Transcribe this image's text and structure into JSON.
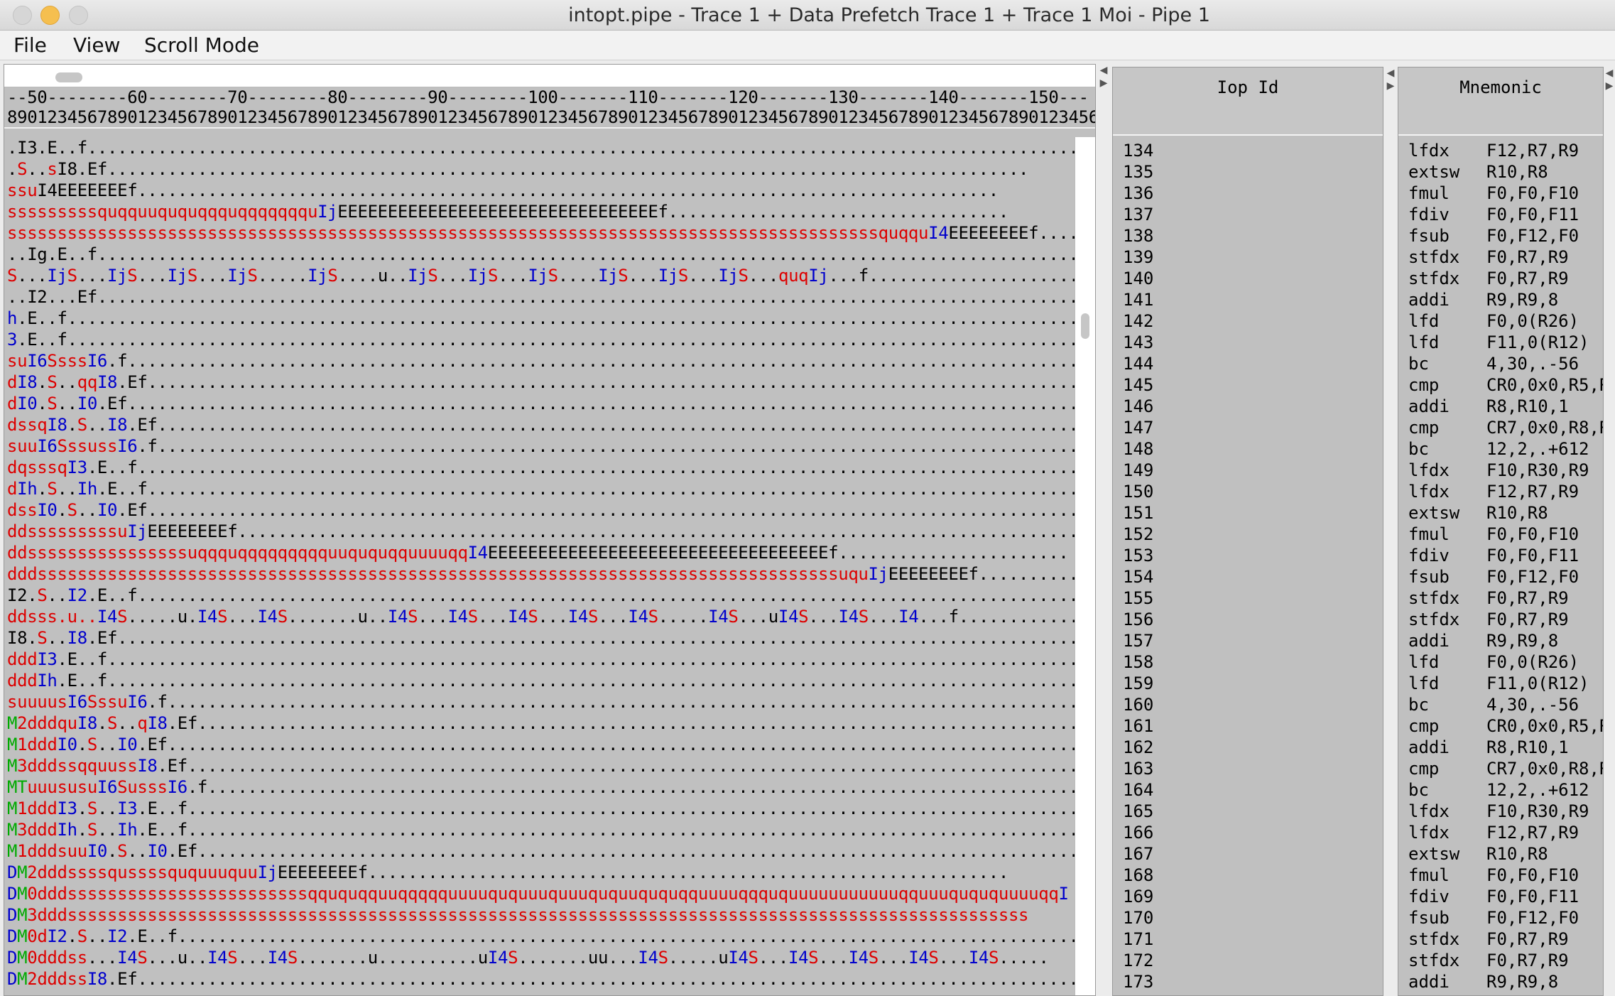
{
  "window": {
    "title": "intopt.pipe - Trace 1 + Data Prefetch Trace 1 + Trace 1 Moi - Pipe 1"
  },
  "menu": {
    "file": "File",
    "view": "View",
    "scroll_mode": "Scroll Mode"
  },
  "ruler": {
    "line1": "--50--------60--------70--------80--------90--------100-------110-------120-------130-------140-------150---",
    "line2": "8901234567890123456789012345678901234567890123456789012345678901234567890123456789012345678901234567890123456"
  },
  "pipe_rows": [
    [
      [
        ".I3.E..f.......................................................................................................",
        ""
      ]
    ],
    [
      [
        ".",
        ""
      ],
      [
        "S",
        "r"
      ],
      [
        "..",
        ""
      ],
      [
        "s",
        "r"
      ],
      [
        "I8.Ef............................................................................................",
        ""
      ]
    ],
    [
      [
        "ssu",
        "r"
      ],
      [
        "I4EEEEEEEf......................................................................................",
        ""
      ]
    ],
    [
      [
        "sssssssssquqquuququqqquqqqqqqqu",
        "r"
      ],
      [
        "Ij",
        "b"
      ],
      [
        "EEEEEEEEEEEEEEEEEEEEEEEEEEEEEEEEf..................................",
        ""
      ]
    ],
    [
      [
        "sssssssssssssssssssssssssssssssssssssssssssssssssssssssssssssssssssssssssssssssssssssssquqqu",
        "r"
      ],
      [
        "I4",
        "b"
      ],
      [
        "EEEEEEEEf.........",
        ""
      ]
    ],
    [
      [
        "..Ig.E..f......................................................................................................",
        ""
      ]
    ],
    [
      [
        "S",
        "r"
      ],
      [
        "...",
        ""
      ],
      [
        "Ij",
        "b"
      ],
      [
        "S",
        "r"
      ],
      [
        "...",
        ""
      ],
      [
        "Ij",
        "b"
      ],
      [
        "S",
        "r"
      ],
      [
        "...",
        ""
      ],
      [
        "Ij",
        "b"
      ],
      [
        "S",
        "r"
      ],
      [
        "...",
        ""
      ],
      [
        "Ij",
        "b"
      ],
      [
        "S",
        "r"
      ],
      [
        ".....",
        ""
      ],
      [
        "Ij",
        "b"
      ],
      [
        "S",
        "r"
      ],
      [
        "....u..",
        ""
      ],
      [
        "Ij",
        "b"
      ],
      [
        "S",
        "r"
      ],
      [
        "...",
        ""
      ],
      [
        "Ij",
        "b"
      ],
      [
        "S",
        "r"
      ],
      [
        "...",
        ""
      ],
      [
        "Ij",
        "b"
      ],
      [
        "S",
        "r"
      ],
      [
        "....",
        ""
      ],
      [
        "Ij",
        "b"
      ],
      [
        "S",
        "r"
      ],
      [
        "...",
        ""
      ],
      [
        "Ij",
        "b"
      ],
      [
        "S",
        "r"
      ],
      [
        "...",
        ""
      ],
      [
        "Ij",
        "b"
      ],
      [
        "S",
        "r"
      ],
      [
        "...",
        ""
      ],
      [
        "quq",
        "r"
      ],
      [
        "Ij",
        "b"
      ],
      [
        "...f.............................",
        ""
      ]
    ],
    [
      [
        "..I2...Ef......................................................................................................",
        ""
      ]
    ],
    [
      [
        "h",
        "b"
      ],
      [
        ".E..f..........................................................................................................",
        ""
      ]
    ],
    [
      [
        "3",
        "b"
      ],
      [
        ".E..f..........................................................................................................",
        ""
      ]
    ],
    [
      [
        "su",
        "r"
      ],
      [
        "I6",
        "b"
      ],
      [
        "Ssss",
        "r"
      ],
      [
        "I6",
        "b"
      ],
      [
        ".f.....................................................................................................",
        ""
      ]
    ],
    [
      [
        "d",
        "r"
      ],
      [
        "I8",
        "b"
      ],
      [
        ".",
        ""
      ],
      [
        "S",
        "r"
      ],
      [
        "..",
        ""
      ],
      [
        "qq",
        "r"
      ],
      [
        "I8",
        "b"
      ],
      [
        ".Ef........................................................................................................",
        ""
      ]
    ],
    [
      [
        "d",
        "r"
      ],
      [
        "I0",
        "b"
      ],
      [
        ".",
        ""
      ],
      [
        "S",
        "r"
      ],
      [
        "..",
        ""
      ],
      [
        "I0",
        "b"
      ],
      [
        ".Ef........................................................................................................",
        ""
      ]
    ],
    [
      [
        "dssq",
        "r"
      ],
      [
        "I8",
        "b"
      ],
      [
        ".",
        ""
      ],
      [
        "S",
        "r"
      ],
      [
        "..",
        ""
      ],
      [
        "I8",
        "b"
      ],
      [
        ".Ef........................................................................................................",
        ""
      ]
    ],
    [
      [
        "suu",
        "r"
      ],
      [
        "I6",
        "b"
      ],
      [
        "Sssuss",
        "r"
      ],
      [
        "I6",
        "b"
      ],
      [
        ".f..................................................................................................",
        ""
      ]
    ],
    [
      [
        "dqsssq",
        "r"
      ],
      [
        "I3",
        "b"
      ],
      [
        ".E..f...................................................................................................",
        ""
      ]
    ],
    [
      [
        "d",
        "r"
      ],
      [
        "Ih",
        "b"
      ],
      [
        ".",
        ""
      ],
      [
        "S",
        "r"
      ],
      [
        "..",
        ""
      ],
      [
        "Ih",
        "b"
      ],
      [
        ".E..f......................................................................................................",
        ""
      ]
    ],
    [
      [
        "dss",
        "r"
      ],
      [
        "I0",
        "b"
      ],
      [
        ".",
        ""
      ],
      [
        "S",
        "r"
      ],
      [
        "..",
        ""
      ],
      [
        "I0",
        "b"
      ],
      [
        ".Ef......................................................................................................",
        ""
      ]
    ],
    [
      [
        "ddsssssssssu",
        "r"
      ],
      [
        "Ij",
        "b"
      ],
      [
        "EEEEEEEEf........................................................................................",
        ""
      ]
    ],
    [
      [
        "ddssssssssssssssssuqqquqqqqqqqqquuququqquuuuqq",
        "r"
      ],
      [
        "I4",
        "b"
      ],
      [
        "EEEEEEEEEEEEEEEEEEEEEEEEEEEEEEEEEEf.......................",
        ""
      ]
    ],
    [
      [
        "dddssssssssssssssssssssssssssssssssssssssssssssssssssssssssssssssssssssssssssssssssuqu",
        "r"
      ],
      [
        "Ij",
        "b"
      ],
      [
        "EEEEEEEEf..................",
        ""
      ]
    ],
    [
      [
        "I2.",
        ""
      ],
      [
        "S",
        "r"
      ],
      [
        "..",
        ""
      ],
      [
        "I2",
        "b"
      ],
      [
        ".E..f......................................................................................................",
        ""
      ]
    ],
    [
      [
        "ddsss.u..",
        "r"
      ],
      [
        "I4",
        "b"
      ],
      [
        "S",
        "r"
      ],
      [
        ".....u.",
        ""
      ],
      [
        "I4",
        "b"
      ],
      [
        "S",
        "r"
      ],
      [
        "...",
        ""
      ],
      [
        "I4",
        "b"
      ],
      [
        "S",
        "r"
      ],
      [
        ".......u..",
        ""
      ],
      [
        "I4",
        "b"
      ],
      [
        "S",
        "r"
      ],
      [
        "...",
        ""
      ],
      [
        "I4",
        "b"
      ],
      [
        "S",
        "r"
      ],
      [
        "...",
        ""
      ],
      [
        "I4",
        "b"
      ],
      [
        "S",
        "r"
      ],
      [
        "...",
        ""
      ],
      [
        "I4",
        "b"
      ],
      [
        "S",
        "r"
      ],
      [
        "...",
        ""
      ],
      [
        "I4",
        "b"
      ],
      [
        "S",
        "r"
      ],
      [
        ".....",
        ""
      ],
      [
        "I4",
        "b"
      ],
      [
        "S",
        "r"
      ],
      [
        "...u",
        ""
      ],
      [
        "I4",
        "b"
      ],
      [
        "S",
        "r"
      ],
      [
        "...",
        ""
      ],
      [
        "I4",
        "b"
      ],
      [
        "S",
        "r"
      ],
      [
        "...",
        ""
      ],
      [
        "I4",
        "b"
      ],
      [
        "...f..........................",
        ""
      ]
    ],
    [
      [
        "I8.",
        ""
      ],
      [
        "S",
        "r"
      ],
      [
        "..",
        ""
      ],
      [
        "I8",
        "b"
      ],
      [
        ".Ef.......................................................................................................",
        ""
      ]
    ],
    [
      [
        "ddd",
        "r"
      ],
      [
        "I3",
        "b"
      ],
      [
        ".E..f....................................................................................................",
        ""
      ]
    ],
    [
      [
        "ddd",
        "r"
      ],
      [
        "Ih",
        "b"
      ],
      [
        ".E..f....................................................................................................",
        ""
      ]
    ],
    [
      [
        "suuuus",
        "r"
      ],
      [
        "I6",
        "b"
      ],
      [
        "Sssu",
        "r"
      ],
      [
        "I6",
        "b"
      ],
      [
        ".f..................................................................................................",
        ""
      ]
    ],
    [
      [
        "M",
        "g"
      ],
      [
        "2dddqu",
        "r"
      ],
      [
        "I8",
        "b"
      ],
      [
        ".",
        ""
      ],
      [
        "S",
        "r"
      ],
      [
        "..",
        ""
      ],
      [
        "q",
        "r"
      ],
      [
        "I8",
        "b"
      ],
      [
        ".Ef.............................................................................................",
        ""
      ]
    ],
    [
      [
        "M",
        "g"
      ],
      [
        "1ddd",
        "r"
      ],
      [
        "I0",
        "b"
      ],
      [
        ".",
        ""
      ],
      [
        "S",
        "r"
      ],
      [
        "..",
        ""
      ],
      [
        "I0",
        "b"
      ],
      [
        ".Ef..............................................................................................",
        ""
      ]
    ],
    [
      [
        "M",
        "g"
      ],
      [
        "3dddssqquuss",
        "r"
      ],
      [
        "I8",
        "b"
      ],
      [
        ".Ef............................................................................................",
        ""
      ]
    ],
    [
      [
        "MT",
        "g"
      ],
      [
        "uuusus",
        "r"
      ],
      [
        "u",
        "r"
      ],
      [
        "I6",
        "b"
      ],
      [
        "Susss",
        "r"
      ],
      [
        "I6",
        "b"
      ],
      [
        ".f..........................................................................................",
        ""
      ]
    ],
    [
      [
        "M",
        "g"
      ],
      [
        "1ddd",
        "r"
      ],
      [
        "I3",
        "b"
      ],
      [
        ".",
        ""
      ],
      [
        "S",
        "r"
      ],
      [
        "..",
        ""
      ],
      [
        "I3",
        "b"
      ],
      [
        ".E..f...........................................................................................",
        ""
      ]
    ],
    [
      [
        "M",
        "g"
      ],
      [
        "3ddd",
        "r"
      ],
      [
        "Ih",
        "b"
      ],
      [
        ".",
        ""
      ],
      [
        "S",
        "r"
      ],
      [
        "..",
        ""
      ],
      [
        "Ih",
        "b"
      ],
      [
        ".E..f...........................................................................................",
        ""
      ]
    ],
    [
      [
        "M",
        "g"
      ],
      [
        "1dddsuu",
        "r"
      ],
      [
        "I0",
        "b"
      ],
      [
        ".",
        ""
      ],
      [
        "S",
        "r"
      ],
      [
        "..",
        ""
      ],
      [
        "I0",
        "b"
      ],
      [
        ".Ef...........................................................................................",
        ""
      ]
    ],
    [
      [
        "D",
        "b"
      ],
      [
        "M",
        "g"
      ],
      [
        "2dddssssqussssququuuquu",
        "r"
      ],
      [
        "Ij",
        "b"
      ],
      [
        "EEEEEEEEf................................................................",
        ""
      ]
    ],
    [
      [
        "D",
        "b"
      ],
      [
        "M",
        "g"
      ],
      [
        "0dddssssssssssssssssssssssssqququqquuqqqqquuuuququuuquuuququuququqquuuuqqququuuuuuuuuuuqquuuquququuuuqq",
        "r"
      ],
      [
        "I",
        "b"
      ]
    ],
    [
      [
        "D",
        "b"
      ],
      [
        "M",
        "g"
      ],
      [
        "3dddssssssssssssssssssssssssssssssssssssssssssssssssssssssssssssssssssssssssssssssssssssssssssssssss",
        "r"
      ]
    ],
    [
      [
        "D",
        "b"
      ],
      [
        "M",
        "g"
      ],
      [
        "0d",
        "r"
      ],
      [
        "I2",
        "b"
      ],
      [
        ".",
        ""
      ],
      [
        "S",
        "r"
      ],
      [
        "..",
        ""
      ],
      [
        "I2",
        "b"
      ],
      [
        ".E..f..............................................................................................",
        ""
      ]
    ],
    [
      [
        "D",
        "b"
      ],
      [
        "M",
        "g"
      ],
      [
        "0dddss",
        "r"
      ],
      [
        "...",
        ""
      ],
      [
        "I4",
        "b"
      ],
      [
        "S",
        "r"
      ],
      [
        "...u..",
        ""
      ],
      [
        "I4",
        "b"
      ],
      [
        "S",
        "r"
      ],
      [
        "...",
        ""
      ],
      [
        "I4",
        "b"
      ],
      [
        "S",
        "r"
      ],
      [
        ".......u..........u",
        ""
      ],
      [
        "I4",
        "b"
      ],
      [
        "S",
        "r"
      ],
      [
        ".......uu...",
        ""
      ],
      [
        "I4",
        "b"
      ],
      [
        "S",
        "r"
      ],
      [
        ".....u",
        ""
      ],
      [
        "I4",
        "b"
      ],
      [
        "S",
        "r"
      ],
      [
        "...",
        ""
      ],
      [
        "I4",
        "b"
      ],
      [
        "S",
        "r"
      ],
      [
        "...",
        ""
      ],
      [
        "I4",
        "b"
      ],
      [
        "S",
        "r"
      ],
      [
        "...",
        ""
      ],
      [
        "I4",
        "b"
      ],
      [
        "S",
        "r"
      ],
      [
        "...",
        ""
      ],
      [
        "I4",
        "b"
      ],
      [
        "S",
        "r"
      ],
      [
        ".....",
        ""
      ]
    ],
    [
      [
        "D",
        "b"
      ],
      [
        "M",
        "g"
      ],
      [
        "2dddss",
        "r"
      ],
      [
        "I8",
        "b"
      ],
      [
        ".Ef..............................................................................................",
        ""
      ]
    ]
  ],
  "iop_column": {
    "header": "Iop Id",
    "ids": [
      "134",
      "135",
      "136",
      "137",
      "138",
      "139",
      "140",
      "141",
      "142",
      "143",
      "144",
      "145",
      "146",
      "147",
      "148",
      "149",
      "150",
      "151",
      "152",
      "153",
      "154",
      "155",
      "156",
      "157",
      "158",
      "159",
      "160",
      "161",
      "162",
      "163",
      "164",
      "165",
      "166",
      "167",
      "168",
      "169",
      "170",
      "171",
      "172",
      "173"
    ]
  },
  "mnemonic_column": {
    "header": "Mnemonic",
    "rows": [
      [
        "lfdx",
        "F12,R7,R9"
      ],
      [
        "extsw",
        "R10,R8"
      ],
      [
        "fmul",
        "F0,F0,F10"
      ],
      [
        "fdiv",
        "F0,F0,F11"
      ],
      [
        "fsub",
        "F0,F12,F0"
      ],
      [
        "stfdx",
        "F0,R7,R9"
      ],
      [
        "stfdx",
        "F0,R7,R9"
      ],
      [
        "addi",
        "R9,R9,8"
      ],
      [
        "lfd",
        "F0,0(R26)"
      ],
      [
        "lfd",
        "F11,0(R12)"
      ],
      [
        "bc",
        "4,30,.-56"
      ],
      [
        "cmp",
        "CR0,0x0,R5,R"
      ],
      [
        "addi",
        "R8,R10,1"
      ],
      [
        "cmp",
        "CR7,0x0,R8,R"
      ],
      [
        "bc",
        "12,2,.+612"
      ],
      [
        "lfdx",
        "F10,R30,R9"
      ],
      [
        "lfdx",
        "F12,R7,R9"
      ],
      [
        "extsw",
        "R10,R8"
      ],
      [
        "fmul",
        "F0,F0,F10"
      ],
      [
        "fdiv",
        "F0,F0,F11"
      ],
      [
        "fsub",
        "F0,F12,F0"
      ],
      [
        "stfdx",
        "F0,R7,R9"
      ],
      [
        "stfdx",
        "F0,R7,R9"
      ],
      [
        "addi",
        "R9,R9,8"
      ],
      [
        "lfd",
        "F0,0(R26)"
      ],
      [
        "lfd",
        "F11,0(R12)"
      ],
      [
        "bc",
        "4,30,.-56"
      ],
      [
        "cmp",
        "CR0,0x0,R5,R"
      ],
      [
        "addi",
        "R8,R10,1"
      ],
      [
        "cmp",
        "CR7,0x0,R8,R"
      ],
      [
        "bc",
        "12,2,.+612"
      ],
      [
        "lfdx",
        "F10,R30,R9"
      ],
      [
        "lfdx",
        "F12,R7,R9"
      ],
      [
        "extsw",
        "R10,R8"
      ],
      [
        "fmul",
        "F0,F0,F10"
      ],
      [
        "fdiv",
        "F0,F0,F11"
      ],
      [
        "fsub",
        "F0,F12,F0"
      ],
      [
        "stfdx",
        "F0,R7,R9"
      ],
      [
        "stfdx",
        "F0,R7,R9"
      ],
      [
        "addi",
        "R9,R9,8"
      ]
    ]
  },
  "colors": {
    "stall_red": "#dd0000",
    "issue_blue": "#0000cc",
    "miss_green": "#00aa00",
    "panel_gray": "#c0c0c0"
  }
}
